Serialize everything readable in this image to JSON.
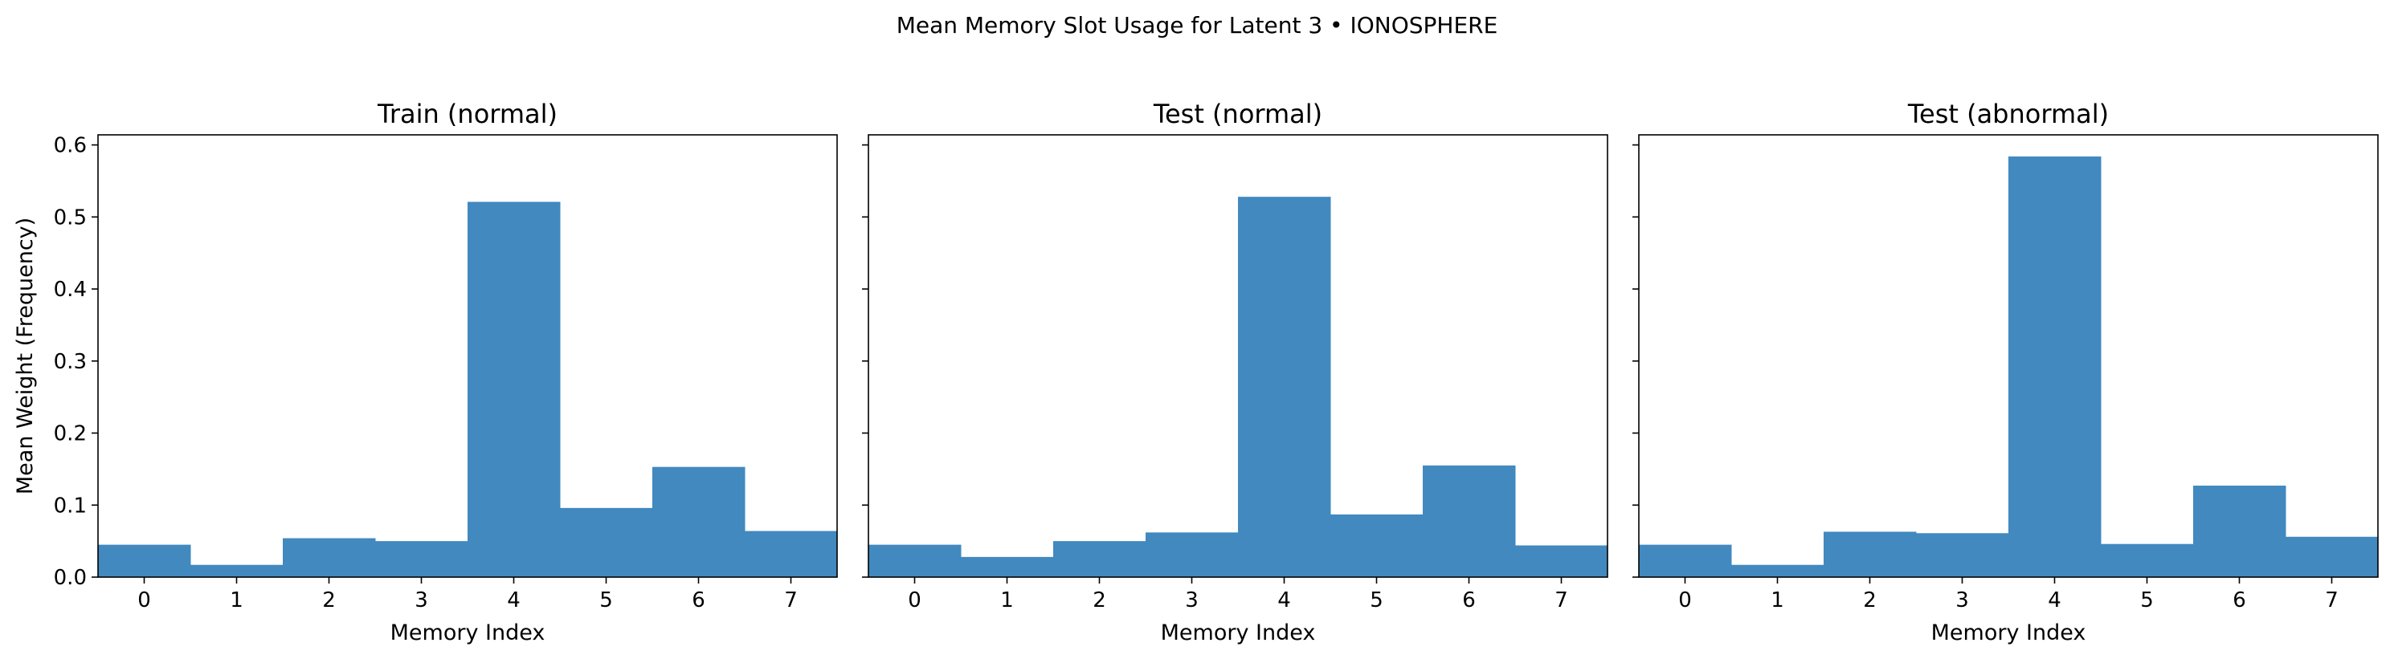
{
  "figure": {
    "suptitle": "Mean Memory Slot Usage for Latent 3 • IONOSPHERE",
    "bar_color": "#4189bf"
  },
  "chart_data": [
    {
      "type": "bar",
      "title": "Train (normal)",
      "xlabel": "Memory Index",
      "ylabel": "Mean Weight (Frequency)",
      "categories": [
        "0",
        "1",
        "2",
        "3",
        "4",
        "5",
        "6",
        "7"
      ],
      "values": [
        0.045,
        0.017,
        0.054,
        0.05,
        0.521,
        0.096,
        0.153,
        0.064
      ],
      "ylim": [
        0,
        0.614
      ],
      "yticks": [
        "0.0",
        "0.1",
        "0.2",
        "0.3",
        "0.4",
        "0.5",
        "0.6"
      ]
    },
    {
      "type": "bar",
      "title": "Test (normal)",
      "xlabel": "Memory Index",
      "ylabel": "",
      "categories": [
        "0",
        "1",
        "2",
        "3",
        "4",
        "5",
        "6",
        "7"
      ],
      "values": [
        0.045,
        0.028,
        0.05,
        0.062,
        0.528,
        0.087,
        0.155,
        0.044
      ],
      "ylim": [
        0,
        0.614
      ],
      "yticks": []
    },
    {
      "type": "bar",
      "title": "Test (abnormal)",
      "xlabel": "Memory Index",
      "ylabel": "",
      "categories": [
        "0",
        "1",
        "2",
        "3",
        "4",
        "5",
        "6",
        "7"
      ],
      "values": [
        0.045,
        0.017,
        0.063,
        0.061,
        0.584,
        0.046,
        0.127,
        0.056
      ],
      "ylim": [
        0,
        0.614
      ],
      "yticks": []
    }
  ]
}
